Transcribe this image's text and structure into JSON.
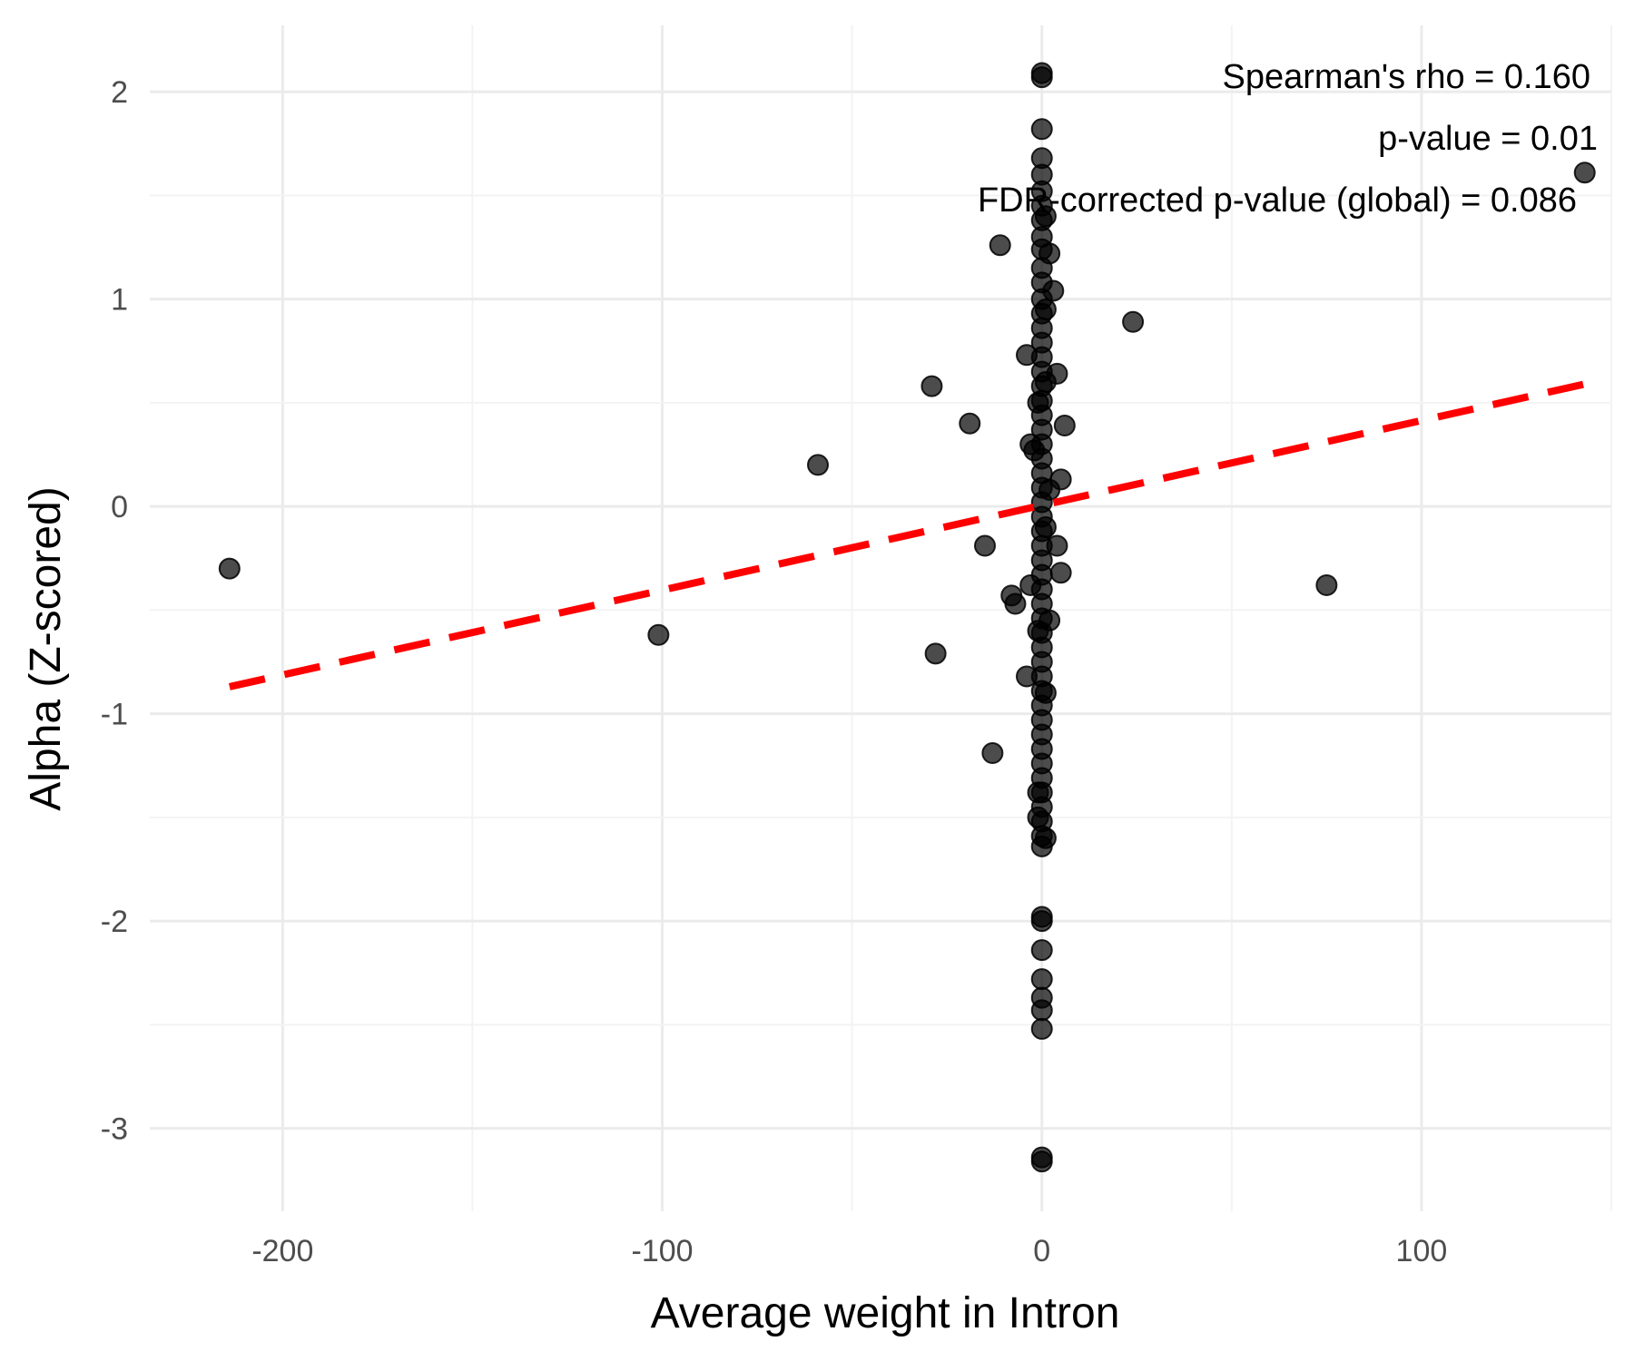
{
  "chart_data": {
    "type": "scatter",
    "xlabel": "Average weight in Intron",
    "ylabel": "Alpha (Z-scored)",
    "xlim": [
      -235,
      150
    ],
    "ylim": [
      -3.4,
      2.32
    ],
    "x_ticks": [
      -200,
      -100,
      0,
      100
    ],
    "x_tick_labels": [
      "-200",
      "-100",
      "0",
      "100"
    ],
    "y_ticks": [
      -3,
      -2,
      -1,
      0,
      1,
      2
    ],
    "y_tick_labels": [
      "-3",
      "-2",
      "-1",
      "0",
      "1",
      "2"
    ],
    "grid": true,
    "annotations": [
      "Spearman's rho = 0.160",
      "p-value = 0.01",
      "FDR-corrected p-value (global) = 0.086"
    ],
    "trend_line": {
      "style": "dashed",
      "color": "#ff0000",
      "x": [
        -214,
        143
      ],
      "y": [
        -0.87,
        0.59
      ]
    },
    "point_color": "#000000",
    "points": [
      {
        "x": -214,
        "y": -0.3
      },
      {
        "x": -101,
        "y": -0.62
      },
      {
        "x": -59,
        "y": 0.2
      },
      {
        "x": -29,
        "y": 0.58
      },
      {
        "x": -28,
        "y": -0.71
      },
      {
        "x": -19,
        "y": 0.4
      },
      {
        "x": -15,
        "y": -0.19
      },
      {
        "x": -13,
        "y": -1.19
      },
      {
        "x": -11,
        "y": 1.26
      },
      {
        "x": -8,
        "y": -0.43
      },
      {
        "x": -7,
        "y": -0.47
      },
      {
        "x": -4,
        "y": 0.73
      },
      {
        "x": -4,
        "y": -0.82
      },
      {
        "x": -3,
        "y": 0.3
      },
      {
        "x": -3,
        "y": -0.38
      },
      {
        "x": -2,
        "y": 0.27
      },
      {
        "x": -1,
        "y": -1.38
      },
      {
        "x": -1,
        "y": -1.5
      },
      {
        "x": -1,
        "y": 0.5
      },
      {
        "x": -1,
        "y": -0.6
      },
      {
        "x": 0,
        "y": 2.09
      },
      {
        "x": 0,
        "y": 2.07
      },
      {
        "x": 0,
        "y": 1.82
      },
      {
        "x": 0,
        "y": 1.68
      },
      {
        "x": 0,
        "y": 1.6
      },
      {
        "x": 0,
        "y": 1.52
      },
      {
        "x": 0,
        "y": 1.45
      },
      {
        "x": 0,
        "y": 1.38
      },
      {
        "x": 0,
        "y": 1.3
      },
      {
        "x": 0,
        "y": 1.24
      },
      {
        "x": 0,
        "y": 1.15
      },
      {
        "x": 0,
        "y": 1.08
      },
      {
        "x": 0,
        "y": 1.0
      },
      {
        "x": 0,
        "y": 0.93
      },
      {
        "x": 0,
        "y": 0.86
      },
      {
        "x": 0,
        "y": 0.79
      },
      {
        "x": 0,
        "y": 0.72
      },
      {
        "x": 0,
        "y": 0.65
      },
      {
        "x": 0,
        "y": 0.58
      },
      {
        "x": 0,
        "y": 0.51
      },
      {
        "x": 0,
        "y": 0.44
      },
      {
        "x": 0,
        "y": 0.37
      },
      {
        "x": 0,
        "y": 0.3
      },
      {
        "x": 0,
        "y": 0.23
      },
      {
        "x": 0,
        "y": 0.16
      },
      {
        "x": 0,
        "y": 0.09
      },
      {
        "x": 0,
        "y": 0.02
      },
      {
        "x": 0,
        "y": -0.05
      },
      {
        "x": 0,
        "y": -0.12
      },
      {
        "x": 0,
        "y": -0.19
      },
      {
        "x": 0,
        "y": -0.26
      },
      {
        "x": 0,
        "y": -0.33
      },
      {
        "x": 0,
        "y": -0.4
      },
      {
        "x": 0,
        "y": -0.47
      },
      {
        "x": 0,
        "y": -0.54
      },
      {
        "x": 0,
        "y": -0.61
      },
      {
        "x": 0,
        "y": -0.68
      },
      {
        "x": 0,
        "y": -0.75
      },
      {
        "x": 0,
        "y": -0.82
      },
      {
        "x": 0,
        "y": -0.89
      },
      {
        "x": 0,
        "y": -0.96
      },
      {
        "x": 0,
        "y": -1.03
      },
      {
        "x": 0,
        "y": -1.1
      },
      {
        "x": 0,
        "y": -1.17
      },
      {
        "x": 0,
        "y": -1.24
      },
      {
        "x": 0,
        "y": -1.31
      },
      {
        "x": 0,
        "y": -1.38
      },
      {
        "x": 0,
        "y": -1.45
      },
      {
        "x": 0,
        "y": -1.52
      },
      {
        "x": 0,
        "y": -1.59
      },
      {
        "x": 0,
        "y": -1.64
      },
      {
        "x": 0,
        "y": -1.98
      },
      {
        "x": 0,
        "y": -2.0
      },
      {
        "x": 0,
        "y": -2.14
      },
      {
        "x": 0,
        "y": -2.28
      },
      {
        "x": 0,
        "y": -2.37
      },
      {
        "x": 0,
        "y": -2.43
      },
      {
        "x": 0,
        "y": -2.52
      },
      {
        "x": 0,
        "y": -3.14
      },
      {
        "x": 0,
        "y": -3.16
      },
      {
        "x": 1,
        "y": 0.95
      },
      {
        "x": 1,
        "y": -0.1
      },
      {
        "x": 1,
        "y": 1.4
      },
      {
        "x": 1,
        "y": -0.9
      },
      {
        "x": 1,
        "y": 0.6
      },
      {
        "x": 1,
        "y": -1.6
      },
      {
        "x": 2,
        "y": 1.22
      },
      {
        "x": 2,
        "y": 0.08
      },
      {
        "x": 2,
        "y": -0.55
      },
      {
        "x": 3,
        "y": 1.04
      },
      {
        "x": 4,
        "y": 0.64
      },
      {
        "x": 4,
        "y": -0.19
      },
      {
        "x": 5,
        "y": 0.13
      },
      {
        "x": 5,
        "y": -0.32
      },
      {
        "x": 6,
        "y": 0.39
      },
      {
        "x": 24,
        "y": 0.89
      },
      {
        "x": 75,
        "y": -0.38
      },
      {
        "x": 143,
        "y": 1.61
      }
    ]
  }
}
